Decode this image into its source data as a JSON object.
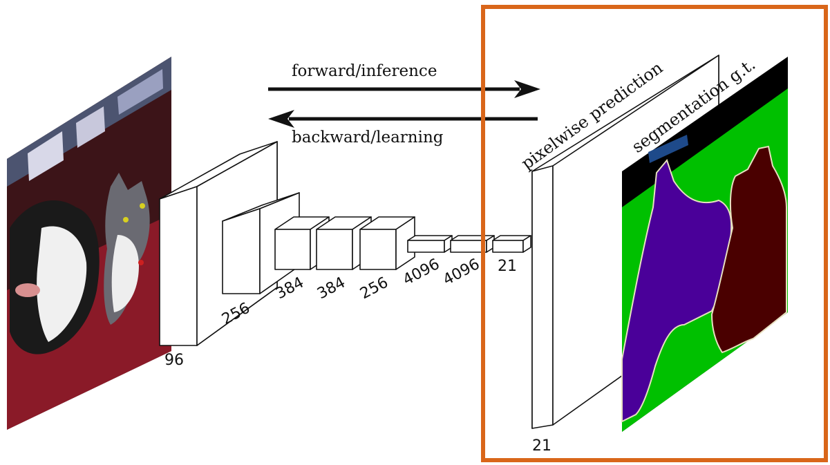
{
  "arrows": {
    "forward_label": "forward/inference",
    "backward_label": "backward/learning"
  },
  "layer_labels": {
    "conv1": "96",
    "conv2": "256",
    "conv3": "384",
    "conv4": "384",
    "conv5": "256",
    "fc6": "4096",
    "fc7": "4096",
    "fc8": "21",
    "output": "21"
  },
  "output_panel": {
    "prediction_label": "pixelwise prediction",
    "ground_truth_label": "segmentation g.t."
  },
  "colors": {
    "highlight_border": "#d9661a",
    "seg_background": "#00c000",
    "seg_dog": "#4a0099",
    "seg_cat": "#4a0000",
    "seg_void": "#000000",
    "seg_boundary": "#e8e0c0",
    "seg_marker": "#1e4a8a"
  }
}
